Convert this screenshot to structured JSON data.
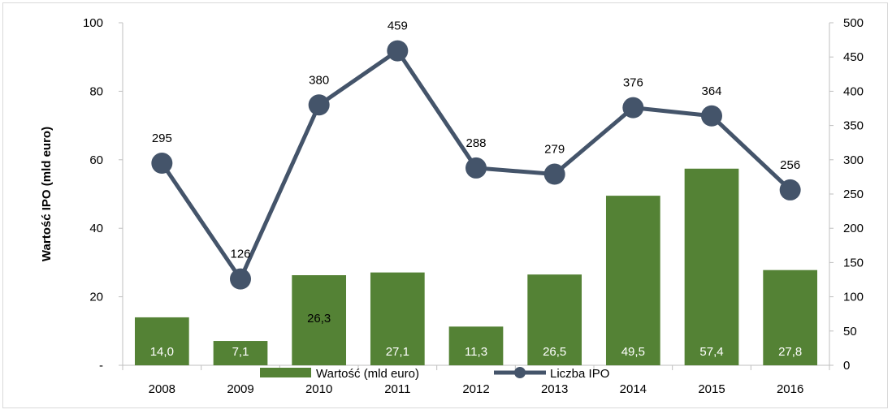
{
  "chart_data": {
    "type": "bar+line",
    "categories": [
      "2008",
      "2009",
      "2010",
      "2011",
      "2012",
      "2013",
      "2014",
      "2015",
      "2016"
    ],
    "series": [
      {
        "name": "Wartość (mld euro)",
        "type": "bar",
        "axis": "left",
        "values": [
          14.0,
          7.1,
          26.3,
          27.1,
          11.3,
          26.5,
          49.5,
          57.4,
          27.8
        ],
        "labels": [
          "14,0",
          "7,1",
          "26,3",
          "27,1",
          "11,3",
          "26,5",
          "49,5",
          "57,4",
          "27,8"
        ],
        "color": "#548235"
      },
      {
        "name": "Liczba IPO",
        "type": "line",
        "axis": "right",
        "values": [
          295,
          126,
          380,
          459,
          288,
          279,
          376,
          364,
          256
        ],
        "labels": [
          "295",
          "126",
          "380",
          "459",
          "288",
          "279",
          "376",
          "364",
          "256"
        ],
        "color": "#44546a"
      }
    ],
    "ylabel": "Wartość IPO (mld euro)",
    "y_left": {
      "min": 0,
      "max": 100,
      "ticks": [
        "-",
        "20",
        "40",
        "60",
        "80",
        "100"
      ]
    },
    "y_right": {
      "min": 0,
      "max": 500,
      "ticks": [
        "0",
        "50",
        "100",
        "150",
        "200",
        "250",
        "300",
        "350",
        "400",
        "450",
        "500"
      ]
    },
    "legend": "bottom-center",
    "grid": false
  }
}
